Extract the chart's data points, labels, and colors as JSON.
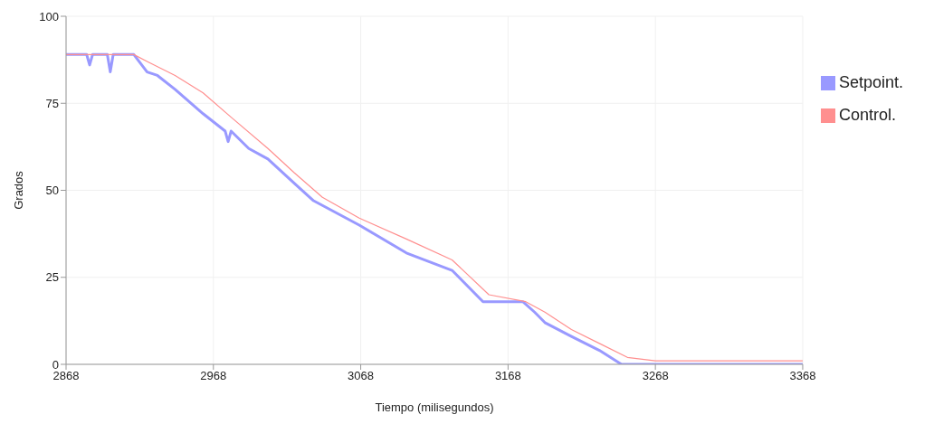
{
  "chart_data": {
    "type": "line",
    "xlabel": "Tiempo (milisegundos)",
    "ylabel": "Grados",
    "xlim": [
      2868,
      3368
    ],
    "xticks": [
      2868,
      2968,
      3068,
      3168,
      3268,
      3368
    ],
    "ylim": [
      0,
      100
    ],
    "yticks": [
      0,
      25,
      50,
      75,
      100
    ],
    "grid": true,
    "legend": "right",
    "marker": "none",
    "line_style": "solid",
    "series": [
      {
        "name": "Setpoint.",
        "color": "#9999ff",
        "x": [
          2868,
          2876,
          2882,
          2884,
          2886,
          2896,
          2898,
          2900,
          2914,
          2923,
          2930,
          2942,
          2961,
          2976,
          2978,
          2980,
          2992,
          3005,
          3023,
          3036,
          3067,
          3099,
          3130,
          3151,
          3178,
          3186,
          3193,
          3211,
          3230,
          3245,
          3368
        ],
        "values": [
          89,
          89,
          89,
          86,
          89,
          89,
          84,
          89,
          89,
          84,
          83,
          79,
          72,
          67,
          64,
          67,
          62,
          59,
          52,
          47,
          40,
          32,
          27,
          18,
          18,
          15,
          12,
          8,
          4,
          0,
          0
        ]
      },
      {
        "name": "Control.",
        "color": "#ff8f8f",
        "x": [
          2868,
          2884,
          2898,
          2914,
          2923,
          2942,
          2961,
          2980,
          3005,
          3023,
          3042,
          3067,
          3099,
          3130,
          3155,
          3180,
          3193,
          3211,
          3230,
          3249,
          3268,
          3368
        ],
        "values": [
          89,
          89,
          89,
          89,
          87,
          83,
          78,
          71,
          62,
          55,
          48,
          42,
          36,
          30,
          20,
          18,
          15,
          10,
          6,
          2,
          1,
          1
        ]
      }
    ]
  }
}
